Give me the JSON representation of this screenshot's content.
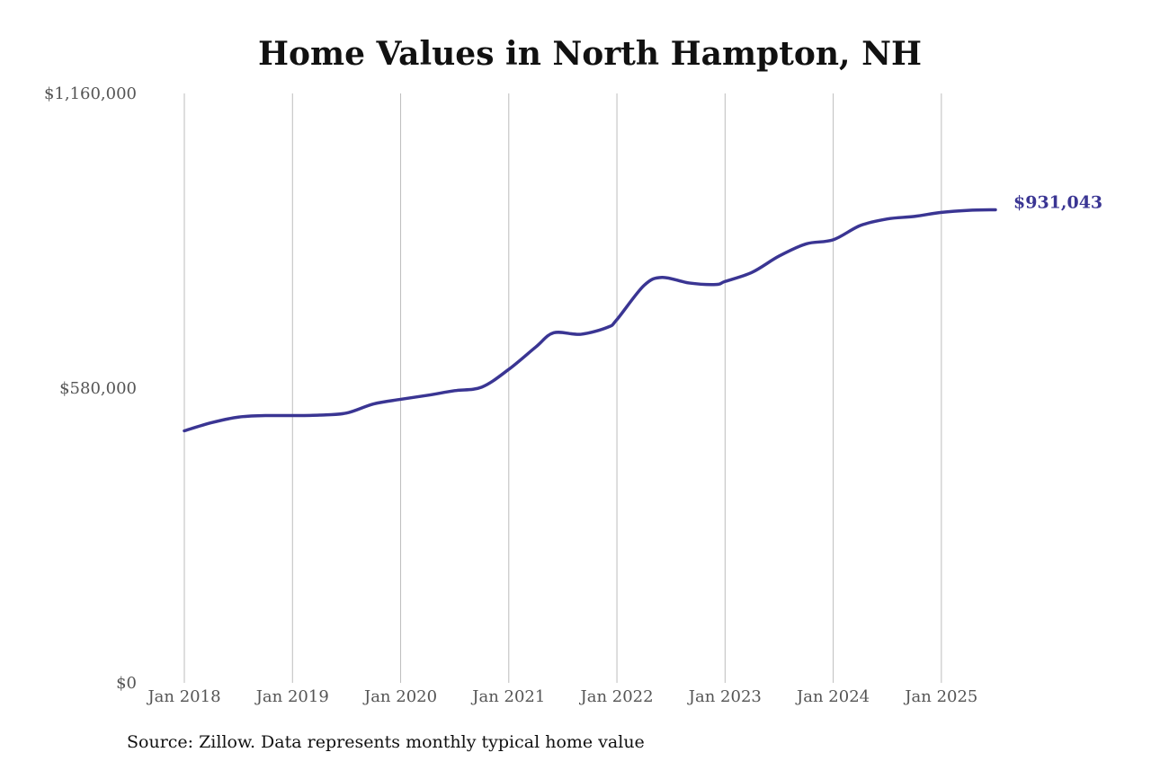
{
  "colors": {
    "line": "#3a3593",
    "end_label": "#3a3593",
    "grid": "#bdbdbd",
    "tick_text": "#555555",
    "title_text": "#111111"
  },
  "source_note": "Source: Zillow. Data represents monthly typical home value",
  "chart_data": {
    "type": "line",
    "title": "Home Values in North Hampton, NH",
    "xlabel": "",
    "ylabel": "",
    "ylim": [
      0,
      1160000
    ],
    "xlim": [
      "2018-01",
      "2025-07"
    ],
    "y_ticks": [
      {
        "value": 0,
        "label": "$0"
      },
      {
        "value": 580000,
        "label": "$580,000"
      },
      {
        "value": 1160000,
        "label": "$1,160,000"
      }
    ],
    "x_ticks": [
      {
        "value": "2018-01",
        "label": "Jan 2018"
      },
      {
        "value": "2019-01",
        "label": "Jan 2019"
      },
      {
        "value": "2020-01",
        "label": "Jan 2020"
      },
      {
        "value": "2021-01",
        "label": "Jan 2021"
      },
      {
        "value": "2022-01",
        "label": "Jan 2022"
      },
      {
        "value": "2023-01",
        "label": "Jan 2023"
      },
      {
        "value": "2024-01",
        "label": "Jan 2024"
      },
      {
        "value": "2025-01",
        "label": "Jan 2025"
      }
    ],
    "grid": "vertical",
    "legend": "none",
    "end_label": "$931,043",
    "series": [
      {
        "x": [
          "2018-01",
          "2018-04",
          "2018-07",
          "2018-10",
          "2019-01",
          "2019-04",
          "2019-07",
          "2019-10",
          "2020-01",
          "2020-04",
          "2020-07",
          "2020-10",
          "2021-01",
          "2021-04",
          "2021-06",
          "2021-09",
          "2021-12",
          "2022-01",
          "2022-04",
          "2022-06",
          "2022-09",
          "2022-12",
          "2023-01",
          "2023-04",
          "2023-07",
          "2023-10",
          "2024-01",
          "2024-04",
          "2024-07",
          "2024-10",
          "2025-01",
          "2025-04",
          "2025-07"
        ],
        "y": [
          496000,
          512000,
          523000,
          526000,
          526000,
          527000,
          531000,
          549000,
          558000,
          566000,
          575000,
          582000,
          617000,
          661000,
          689000,
          686000,
          700000,
          715000,
          782000,
          798000,
          787000,
          784000,
          790000,
          808000,
          840000,
          864000,
          872000,
          900000,
          913000,
          918000,
          926000,
          930000,
          931043
        ]
      }
    ]
  }
}
